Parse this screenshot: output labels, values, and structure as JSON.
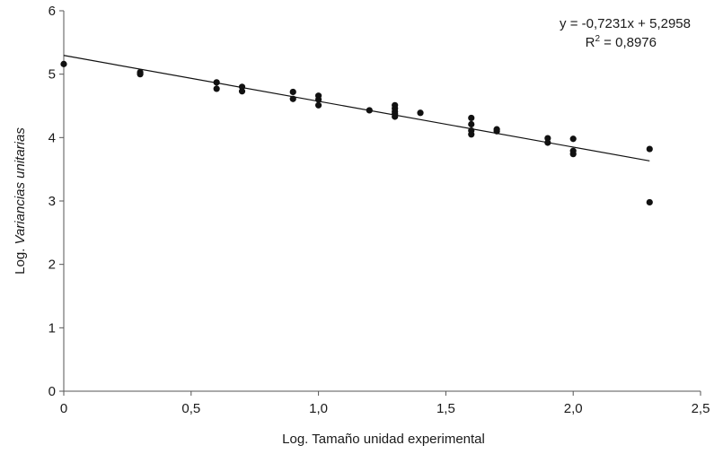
{
  "chart_data": {
    "type": "scatter",
    "title": "",
    "xlabel": "Log. Tamaño unidad experimental",
    "ylabel_prefix": "Log. ",
    "ylabel_italic": "Variancias unitarias",
    "xlim": [
      0,
      2.5
    ],
    "ylim": [
      0,
      6
    ],
    "x_ticks": [
      0,
      0.5,
      1.0,
      1.5,
      2.0,
      2.5
    ],
    "x_tick_labels": [
      "0",
      "0,5",
      "1,0",
      "1,5",
      "2,0",
      "2,5"
    ],
    "y_ticks": [
      0,
      1,
      2,
      3,
      4,
      5,
      6
    ],
    "y_tick_labels": [
      "0",
      "1",
      "2",
      "3",
      "4",
      "5",
      "6"
    ],
    "grid": false,
    "legend": "none",
    "marker_color": "#111111",
    "trendline": {
      "slope": -0.7231,
      "intercept": 5.2958,
      "x_range": [
        0,
        2.3
      ],
      "color": "#111111",
      "equation": "y = -0,7231x + 5,2958",
      "r2_prefix": "R",
      "r2_sup": "2",
      "r2_suffix": " = 0,8976"
    },
    "points": [
      {
        "x": 0.0,
        "y": 5.16
      },
      {
        "x": 0.3,
        "y": 5.03
      },
      {
        "x": 0.3,
        "y": 5.0
      },
      {
        "x": 0.6,
        "y": 4.87
      },
      {
        "x": 0.6,
        "y": 4.77
      },
      {
        "x": 0.7,
        "y": 4.8
      },
      {
        "x": 0.7,
        "y": 4.73
      },
      {
        "x": 0.9,
        "y": 4.72
      },
      {
        "x": 0.9,
        "y": 4.61
      },
      {
        "x": 1.0,
        "y": 4.66
      },
      {
        "x": 1.0,
        "y": 4.6
      },
      {
        "x": 1.0,
        "y": 4.51
      },
      {
        "x": 1.2,
        "y": 4.43
      },
      {
        "x": 1.3,
        "y": 4.51
      },
      {
        "x": 1.3,
        "y": 4.46
      },
      {
        "x": 1.3,
        "y": 4.41
      },
      {
        "x": 1.3,
        "y": 4.37
      },
      {
        "x": 1.3,
        "y": 4.33
      },
      {
        "x": 1.4,
        "y": 4.39
      },
      {
        "x": 1.6,
        "y": 4.31
      },
      {
        "x": 1.6,
        "y": 4.21
      },
      {
        "x": 1.6,
        "y": 4.11
      },
      {
        "x": 1.6,
        "y": 4.05
      },
      {
        "x": 1.7,
        "y": 4.13
      },
      {
        "x": 1.7,
        "y": 4.1
      },
      {
        "x": 1.9,
        "y": 3.99
      },
      {
        "x": 1.9,
        "y": 3.92
      },
      {
        "x": 2.0,
        "y": 3.98
      },
      {
        "x": 2.0,
        "y": 3.79
      },
      {
        "x": 2.0,
        "y": 3.74
      },
      {
        "x": 2.3,
        "y": 3.82
      },
      {
        "x": 2.3,
        "y": 2.98
      }
    ]
  }
}
